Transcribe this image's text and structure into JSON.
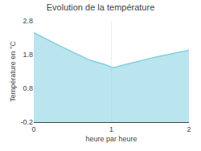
{
  "chart_data": {
    "type": "area",
    "title": "Evolution de la température",
    "xlabel": "heure par heure",
    "ylabel": "Température en °C",
    "x": [
      0,
      0.1,
      0.2,
      0.3,
      0.4,
      0.5,
      0.6,
      0.7,
      0.8,
      0.9,
      1.0,
      1.05,
      1.1,
      1.2,
      1.3,
      1.4,
      1.5,
      1.6,
      1.7,
      1.8,
      1.9,
      2.0
    ],
    "values": [
      2.45,
      2.34,
      2.22,
      2.1,
      1.99,
      1.88,
      1.77,
      1.66,
      1.58,
      1.52,
      1.43,
      1.42,
      1.46,
      1.52,
      1.58,
      1.64,
      1.69,
      1.74,
      1.79,
      1.84,
      1.89,
      1.93
    ],
    "color": "#82cfe0",
    "xlim": [
      0,
      2
    ],
    "ylim": [
      -0.2,
      2.8
    ],
    "xticks": [
      0,
      1,
      2
    ],
    "yticks": [
      -0.2,
      0.8,
      1.8,
      2.8
    ],
    "grid": "x"
  }
}
